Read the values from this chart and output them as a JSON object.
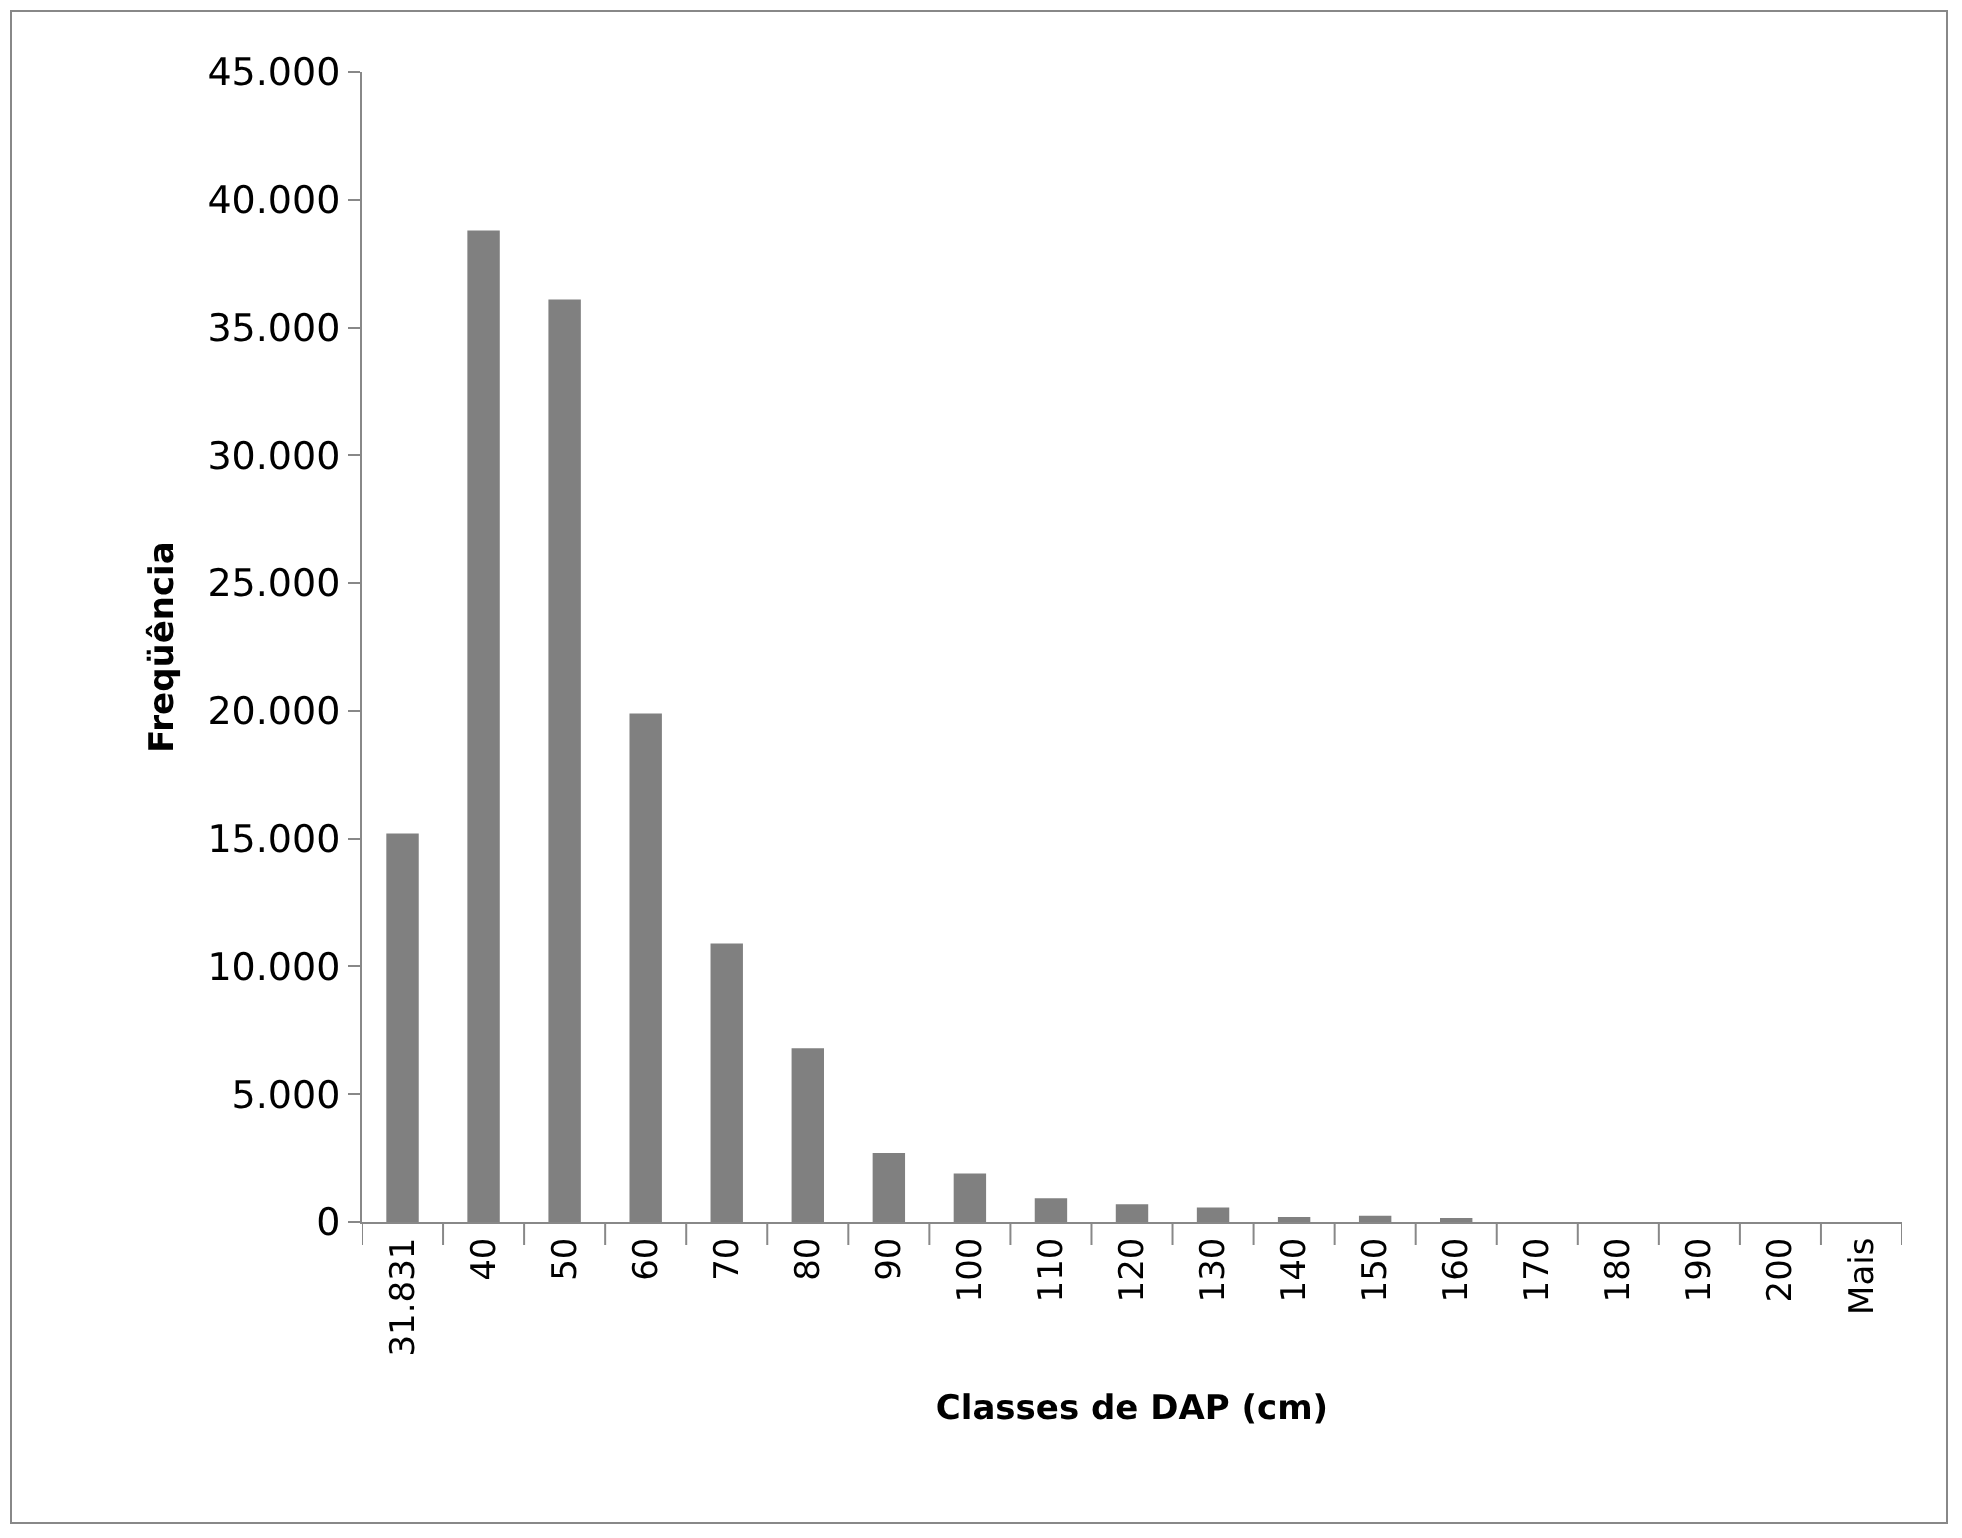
{
  "chart_data": {
    "type": "bar",
    "xlabel": "Classes de DAP (cm)",
    "ylabel": "Freqüência",
    "categories": [
      "31.831",
      "40",
      "50",
      "60",
      "70",
      "80",
      "90",
      "100",
      "110",
      "120",
      "130",
      "140",
      "150",
      "160",
      "170",
      "180",
      "190",
      "200",
      "Mais"
    ],
    "values": [
      15200,
      38800,
      36100,
      19900,
      10900,
      6800,
      2700,
      1900,
      930,
      690,
      570,
      200,
      240,
      120,
      0,
      0,
      0,
      0,
      0
    ],
    "color": "#808080",
    "ylim": [
      0,
      45000
    ],
    "yticks": [
      0,
      {
        "value": 5000,
        "label": "5.000"
      },
      {
        "value": 10000,
        "label": "10.000"
      },
      {
        "value": 15000,
        "label": "15.000"
      },
      {
        "value": 20000,
        "label": "20.000"
      },
      {
        "value": 25000,
        "label": "25.000"
      },
      {
        "value": 30000,
        "label": "30.000"
      },
      {
        "value": 35000,
        "label": "35.000"
      },
      {
        "value": 40000,
        "label": "40.000"
      },
      {
        "value": 45000,
        "label": "45.000"
      }
    ],
    "grid": false
  }
}
